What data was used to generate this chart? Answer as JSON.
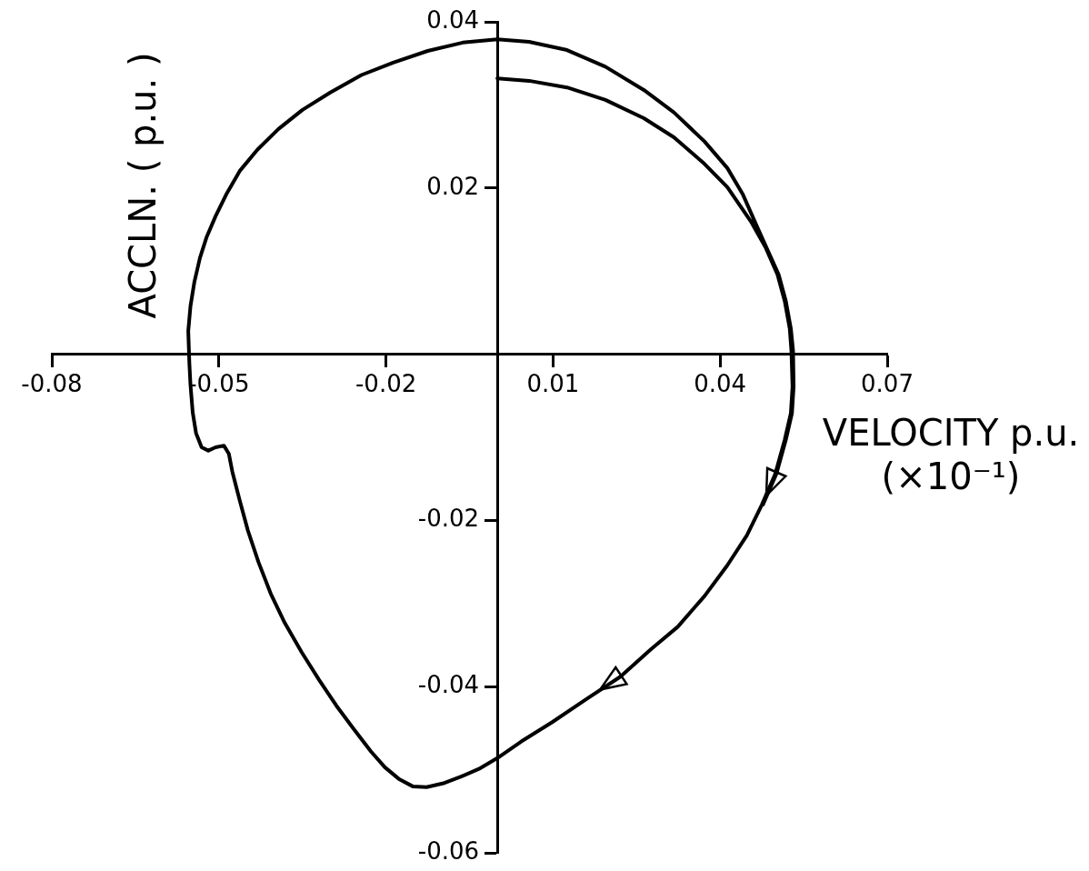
{
  "chart_data": {
    "type": "line",
    "xlabel": "VELOCITY p.u. (×10⁻¹)",
    "ylabel": "ACCLN. ( p.u. )",
    "xlim": [
      -0.08,
      0.07
    ],
    "xticks": [
      -0.08,
      -0.05,
      -0.02,
      0.01,
      0.04,
      0.07
    ],
    "ylim": [
      -0.06,
      0.04
    ],
    "yticks": [
      -0.06,
      -0.04,
      -0.02,
      0.02,
      0.04
    ],
    "line_style": "solid",
    "series": [
      {
        "color": "#000000",
        "x": [
          0,
          0.0057,
          0.0125,
          0.0194,
          0.0263,
          0.0317,
          0.0372,
          0.0413,
          0.0455,
          0.0482,
          0.0503,
          0.0516,
          0.0525,
          0.0528,
          0.053,
          0.0527,
          0.0516,
          0.0499,
          0.0475,
          0.0448,
          0.0413,
          0.0372,
          0.0324,
          0.0276,
          0.0221,
          0.016,
          0.0098,
          0.0043,
          0,
          -0.0033,
          -0.0064,
          -0.0095,
          -0.0127,
          -0.0152,
          -0.0177,
          -0.0202,
          -0.0227,
          -0.0258,
          -0.0289,
          -0.032,
          -0.0351,
          -0.0382,
          -0.0407,
          -0.0429,
          -0.0448,
          -0.0463,
          -0.0476,
          -0.0482,
          -0.0491,
          -0.0506,
          -0.0519,
          -0.0531,
          -0.0541,
          -0.0547,
          -0.0551,
          -0.0553,
          -0.0555,
          -0.0551,
          -0.0544,
          -0.0534,
          -0.0522,
          -0.0506,
          -0.0487,
          -0.0462,
          -0.0431,
          -0.0393,
          -0.035,
          -0.03,
          -0.0244,
          -0.0187,
          -0.0125,
          -0.0062,
          0,
          0.0057,
          0.0125,
          0.0194,
          0.0263,
          0.0317,
          0.0372,
          0.0413,
          0.0441,
          0.0468,
          0.0505,
          0.0518,
          0.0527,
          0.0531,
          0.0532,
          0.0529,
          0.0518,
          0.0501,
          0.0477
        ],
        "values": [
          0.0332,
          0.0329,
          0.0321,
          0.0306,
          0.0284,
          0.0261,
          0.0229,
          0.0201,
          0.016,
          0.0128,
          0.0096,
          0.0064,
          0.0031,
          0.0004,
          -0.0039,
          -0.0071,
          -0.0103,
          -0.0144,
          -0.0181,
          -0.0218,
          -0.0254,
          -0.0291,
          -0.0328,
          -0.0355,
          -0.0388,
          -0.0415,
          -0.0443,
          -0.0466,
          -0.0486,
          -0.0499,
          -0.0508,
          -0.0516,
          -0.0521,
          -0.052,
          -0.0511,
          -0.0497,
          -0.0478,
          -0.0451,
          -0.0423,
          -0.0392,
          -0.0359,
          -0.0323,
          -0.0288,
          -0.025,
          -0.0212,
          -0.0175,
          -0.0141,
          -0.012,
          -0.011,
          -0.0112,
          -0.0116,
          -0.0112,
          -0.0095,
          -0.007,
          -0.0037,
          -0.0011,
          0.0028,
          0.0058,
          0.0087,
          0.0116,
          0.0141,
          0.0166,
          0.0192,
          0.0221,
          0.0246,
          0.0271,
          0.0294,
          0.0315,
          0.0336,
          0.0351,
          0.0365,
          0.0375,
          0.0379,
          0.0376,
          0.0366,
          0.0346,
          0.0318,
          0.0291,
          0.0256,
          0.0224,
          0.0192,
          0.0151,
          0.0096,
          0.0064,
          0.0031,
          0.0004,
          -0.0039,
          -0.0071,
          -0.0103,
          -0.0144,
          -0.0181
        ]
      }
    ]
  }
}
